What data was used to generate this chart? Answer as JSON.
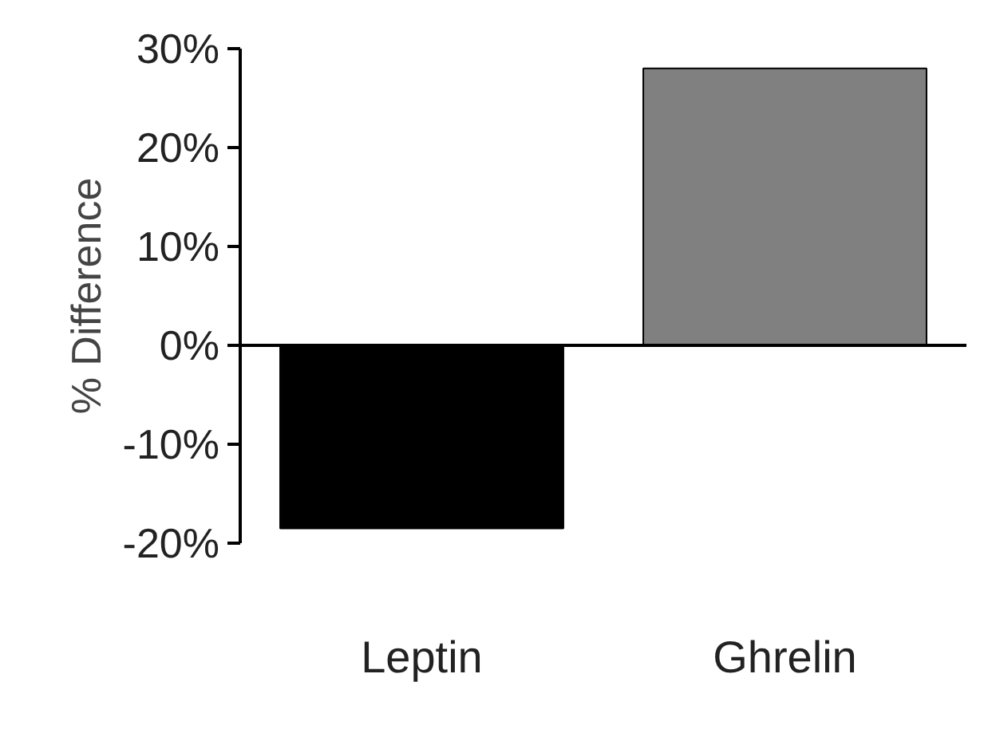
{
  "chart_data": {
    "type": "bar",
    "ylabel": "% Difference",
    "categories": [
      "Leptin",
      "Ghrelin"
    ],
    "colors": [
      "#000000",
      "#808080"
    ],
    "values": [
      -18.5,
      28
    ],
    "ylim": [
      -20,
      30
    ],
    "yticks": [
      {
        "value": -20,
        "label": "-20%"
      },
      {
        "value": -10,
        "label": "-10%"
      },
      {
        "value": 0,
        "label": "0%"
      },
      {
        "value": 10,
        "label": "10%"
      },
      {
        "value": 20,
        "label": "20%"
      },
      {
        "value": 30,
        "label": "30%"
      }
    ],
    "marker": "none"
  }
}
